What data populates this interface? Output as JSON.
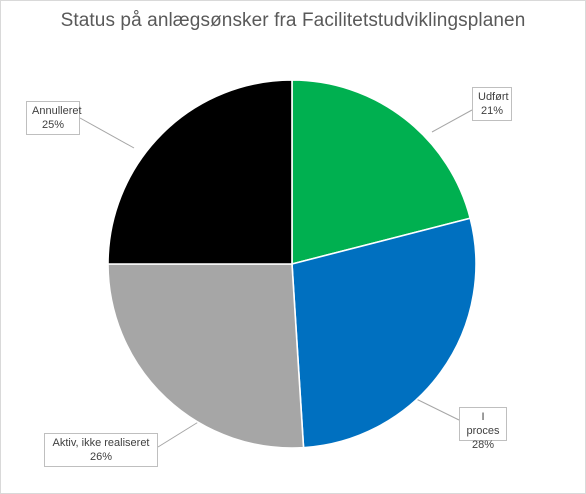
{
  "chart_data": {
    "type": "pie",
    "title": "Status på anlægsønsker fra Facilitetstudviklingsplanen",
    "categories": [
      "Udført",
      "I proces",
      "Aktiv, ikke realiseret",
      "Annulleret"
    ],
    "values": [
      21,
      28,
      26,
      25
    ],
    "value_labels": [
      "21%",
      "28%",
      "26%",
      "25%"
    ],
    "colors": [
      "#00b050",
      "#0070c0",
      "#a6a6a6",
      "#000000"
    ],
    "start_angle_deg": 0,
    "direction": "clockwise",
    "legend": "none",
    "data_labels": "callouts"
  }
}
